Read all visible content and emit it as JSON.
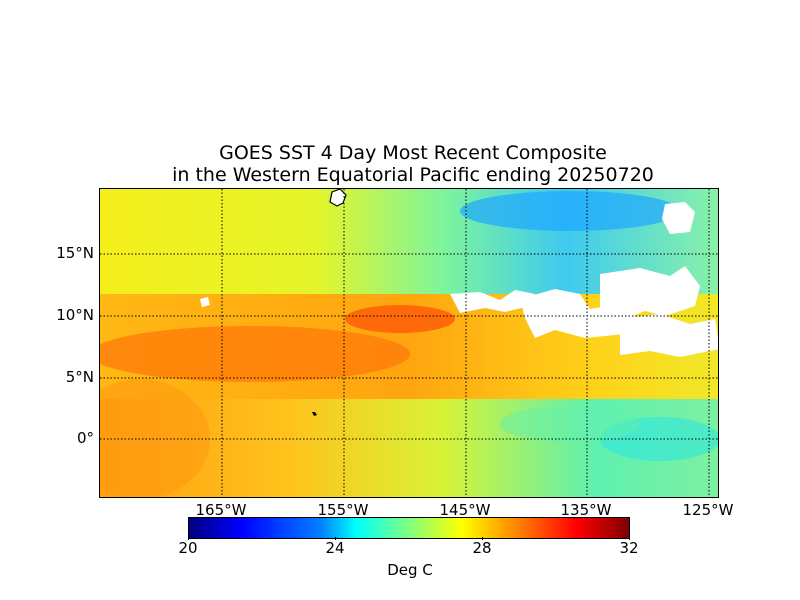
{
  "title": {
    "line1": "GOES SST 4 Day Most Recent Composite",
    "line2": "in the Western Equatorial Pacific ending 20250720"
  },
  "map": {
    "lat_labels": [
      "15°N",
      "10°N",
      "5°N",
      "0°"
    ],
    "lon_labels": [
      "165°W",
      "155°W",
      "145°W",
      "135°W",
      "125°W"
    ],
    "land_color": "#ffffff",
    "missing_data_color": "#ffffff",
    "grid_style": "dotted"
  },
  "colorbar": {
    "label": "Deg C",
    "ticks": [
      "20",
      "24",
      "28",
      "32"
    ],
    "range": [
      20,
      32
    ],
    "colormap": "jet"
  }
}
